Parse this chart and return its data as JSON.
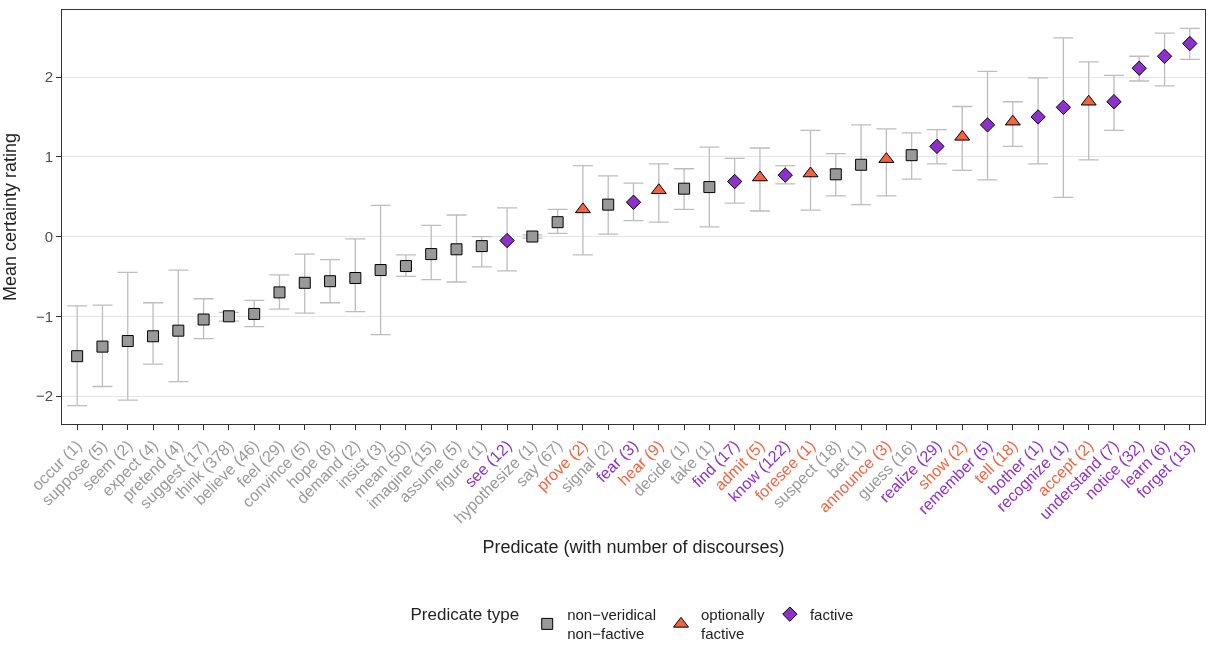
{
  "chart_data": {
    "type": "scatter",
    "xlabel": "Predicate (with number of discourses)",
    "ylabel": "Mean certainty rating",
    "legend_title": "Predicate type",
    "categories": [
      "occur (1)",
      "suppose (5)",
      "seem (2)",
      "expect (4)",
      "pretend (4)",
      "suggest (17)",
      "think (378)",
      "believe (46)",
      "feel (29)",
      "convince (5)",
      "hope (8)",
      "demand (2)",
      "insist (3)",
      "mean (50)",
      "imagine (15)",
      "assume (5)",
      "figure (1)",
      "see (12)",
      "hypothesize (1)",
      "say (67)",
      "prove (2)",
      "signal (2)",
      "fear (3)",
      "hear (9)",
      "decide (1)",
      "take (1)",
      "find (17)",
      "admit (5)",
      "know (122)",
      "foresee (1)",
      "suspect (18)",
      "bet (1)",
      "announce (3)",
      "guess (16)",
      "realize (29)",
      "show (2)",
      "remember (5)",
      "tell (18)",
      "bother (1)",
      "recognize (1)",
      "accept (2)",
      "understand (7)",
      "notice (32)",
      "learn (6)",
      "forget (13)"
    ],
    "series": [
      {
        "name": "non−veridical\nnon−factive",
        "color": "#999999",
        "marker": "square",
        "values": [
          -1.5,
          -1.38,
          -1.31,
          -1.25,
          -1.18,
          -1.04,
          -1.0,
          -0.97,
          -0.7,
          -0.58,
          -0.56,
          -0.52,
          -0.42,
          -0.37,
          -0.22,
          -0.16,
          -0.12,
          null,
          0.0,
          0.18,
          null,
          0.4,
          null,
          null,
          0.6,
          0.62,
          null,
          null,
          null,
          null,
          0.78,
          0.9,
          null,
          1.02,
          null,
          null,
          null,
          null,
          null,
          null,
          null,
          null,
          null,
          null,
          null
        ],
        "errors": [
          [
            -2.12,
            -0.87
          ],
          [
            -1.88,
            -0.86
          ],
          [
            -2.05,
            -0.45
          ],
          [
            -1.6,
            -0.83
          ],
          [
            -1.82,
            -0.42
          ],
          [
            -1.28,
            -0.78
          ],
          [
            -1.06,
            -0.95
          ],
          [
            -1.13,
            -0.8
          ],
          [
            -0.91,
            -0.48
          ],
          [
            -0.96,
            -0.22
          ],
          [
            -0.83,
            -0.29
          ],
          [
            -0.94,
            -0.03
          ],
          [
            -1.23,
            0.39
          ],
          [
            -0.5,
            -0.23
          ],
          [
            -0.54,
            0.14
          ],
          [
            -0.57,
            0.27
          ],
          [
            -0.38,
            0.0
          ],
          null,
          [
            -0.02,
            0.02
          ],
          [
            0.04,
            0.34
          ],
          null,
          [
            0.03,
            0.76
          ],
          null,
          null,
          [
            0.34,
            0.85
          ],
          [
            0.12,
            1.12
          ],
          null,
          null,
          null,
          null,
          [
            0.51,
            1.04
          ],
          [
            0.4,
            1.4
          ],
          null,
          [
            0.72,
            1.3
          ],
          null,
          null,
          null,
          null,
          null,
          null,
          null,
          null,
          null,
          null,
          null
        ]
      },
      {
        "name": "optionally\nfactive",
        "color": "#f5623f",
        "marker": "triangle",
        "values": [
          null,
          null,
          null,
          null,
          null,
          null,
          null,
          null,
          null,
          null,
          null,
          null,
          null,
          null,
          null,
          null,
          null,
          null,
          null,
          null,
          0.34,
          null,
          null,
          0.58,
          null,
          null,
          null,
          0.74,
          null,
          0.79,
          null,
          null,
          0.97,
          null,
          null,
          1.25,
          null,
          1.44,
          null,
          null,
          1.69,
          null,
          null,
          null,
          null
        ],
        "errors": [
          null,
          null,
          null,
          null,
          null,
          null,
          null,
          null,
          null,
          null,
          null,
          null,
          null,
          null,
          null,
          null,
          null,
          null,
          null,
          null,
          [
            -0.23,
            0.89
          ],
          null,
          null,
          [
            0.18,
            0.91
          ],
          null,
          null,
          null,
          [
            0.32,
            1.11
          ],
          null,
          [
            0.33,
            1.33
          ],
          null,
          null,
          [
            0.51,
            1.35
          ],
          null,
          null,
          [
            0.83,
            1.63
          ],
          null,
          [
            1.13,
            1.69
          ],
          null,
          null,
          [
            0.96,
            2.19
          ],
          null,
          null,
          null,
          null
        ]
      },
      {
        "name": "factive",
        "color": "#8e30cc",
        "marker": "diamond",
        "values": [
          null,
          null,
          null,
          null,
          null,
          null,
          null,
          null,
          null,
          null,
          null,
          null,
          null,
          null,
          null,
          null,
          null,
          -0.05,
          null,
          null,
          null,
          null,
          0.43,
          null,
          null,
          null,
          0.69,
          null,
          0.77,
          null,
          null,
          null,
          null,
          null,
          1.13,
          null,
          1.4,
          null,
          1.5,
          1.62,
          null,
          1.69,
          2.11,
          2.26,
          2.42
        ],
        "errors": [
          null,
          null,
          null,
          null,
          null,
          null,
          null,
          null,
          null,
          null,
          null,
          null,
          null,
          null,
          null,
          null,
          null,
          [
            -0.43,
            0.36
          ],
          null,
          null,
          null,
          null,
          [
            0.2,
            0.67
          ],
          null,
          null,
          null,
          [
            0.42,
            0.98
          ],
          null,
          [
            0.66,
            0.89
          ],
          null,
          null,
          null,
          null,
          null,
          [
            0.91,
            1.34
          ],
          null,
          [
            0.71,
            2.07
          ],
          null,
          [
            0.91,
            1.99
          ],
          [
            0.49,
            2.49
          ],
          null,
          [
            1.33,
            2.02
          ],
          [
            1.95,
            2.26
          ],
          [
            1.89,
            2.55
          ],
          [
            2.22,
            2.61
          ]
        ]
      }
    ],
    "ylim": [
      -2.35,
      2.84
    ],
    "yticks": [
      {
        "value": -2,
        "label": "−2"
      },
      {
        "value": -1,
        "label": "−1"
      },
      0,
      1,
      2
    ],
    "grid": "y",
    "legend": "bottom"
  }
}
